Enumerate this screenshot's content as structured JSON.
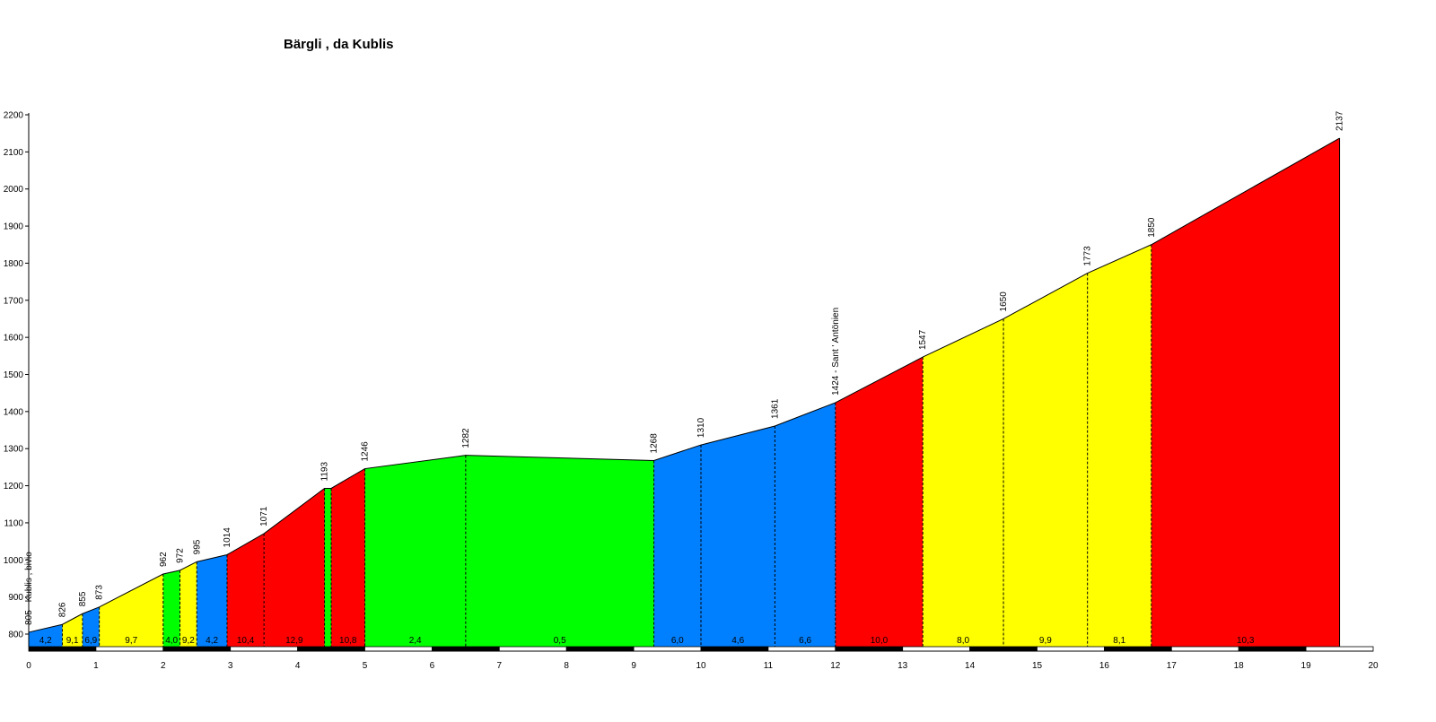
{
  "chart_data": {
    "type": "area",
    "title": "Bärgli , da Kublis",
    "xlabel": "",
    "ylabel": "",
    "xlim": [
      0,
      20
    ],
    "ylim": [
      760,
      2200
    ],
    "x_ticks": [
      0,
      1,
      2,
      3,
      4,
      5,
      6,
      7,
      8,
      9,
      10,
      11,
      12,
      13,
      14,
      15,
      16,
      17,
      18,
      19,
      20
    ],
    "y_ticks": [
      800,
      900,
      1000,
      1100,
      1200,
      1300,
      1400,
      1500,
      1600,
      1700,
      1800,
      1900,
      2000,
      2100,
      2200
    ],
    "points": [
      {
        "x": 0.0,
        "y": 805,
        "label": "805 - Kublis , bivio"
      },
      {
        "x": 0.5,
        "y": 826,
        "label": "826"
      },
      {
        "x": 0.8,
        "y": 855,
        "label": "855"
      },
      {
        "x": 1.05,
        "y": 873,
        "label": "873"
      },
      {
        "x": 2.0,
        "y": 962,
        "label": "962"
      },
      {
        "x": 2.25,
        "y": 972,
        "label": "972"
      },
      {
        "x": 2.5,
        "y": 995,
        "label": "995"
      },
      {
        "x": 2.95,
        "y": 1014,
        "label": "1014"
      },
      {
        "x": 3.5,
        "y": 1071,
        "label": "1071"
      },
      {
        "x": 4.4,
        "y": 1193,
        "label": "1193"
      },
      {
        "x": 4.5,
        "y": 1193,
        "label": ""
      },
      {
        "x": 5.0,
        "y": 1246,
        "label": "1246"
      },
      {
        "x": 6.5,
        "y": 1282,
        "label": "1282"
      },
      {
        "x": 9.3,
        "y": 1268,
        "label": "1268"
      },
      {
        "x": 10.0,
        "y": 1310,
        "label": "1310"
      },
      {
        "x": 11.1,
        "y": 1361,
        "label": "1361"
      },
      {
        "x": 12.0,
        "y": 1424,
        "label": "1424 - Sant ' Antönien"
      },
      {
        "x": 13.3,
        "y": 1547,
        "label": "1547"
      },
      {
        "x": 14.5,
        "y": 1650,
        "label": "1650"
      },
      {
        "x": 15.75,
        "y": 1773,
        "label": "1773"
      },
      {
        "x": 16.7,
        "y": 1850,
        "label": "1850"
      },
      {
        "x": 19.5,
        "y": 2137,
        "label": "2137"
      }
    ],
    "segments": [
      {
        "from": 0.0,
        "to": 0.5,
        "gradient": "4,2",
        "color": "#0080ff"
      },
      {
        "from": 0.5,
        "to": 0.8,
        "gradient": "9,1",
        "color": "#ffff00"
      },
      {
        "from": 0.8,
        "to": 1.05,
        "gradient": "6,9",
        "color": "#0080ff"
      },
      {
        "from": 1.05,
        "to": 2.0,
        "gradient": "9,7",
        "color": "#ffff00"
      },
      {
        "from": 2.0,
        "to": 2.25,
        "gradient": "4,0",
        "color": "#00ff00"
      },
      {
        "from": 2.25,
        "to": 2.5,
        "gradient": "9,2",
        "color": "#ffff00"
      },
      {
        "from": 2.5,
        "to": 2.95,
        "gradient": "4,2",
        "color": "#0080ff"
      },
      {
        "from": 2.95,
        "to": 3.5,
        "gradient": "10,4",
        "color": "#ff0000"
      },
      {
        "from": 3.5,
        "to": 4.4,
        "gradient": "12,9",
        "color": "#ff0000"
      },
      {
        "from": 4.4,
        "to": 4.5,
        "gradient": "",
        "color": "#00ff00"
      },
      {
        "from": 4.5,
        "to": 5.0,
        "gradient": "10,8",
        "color": "#ff0000"
      },
      {
        "from": 5.0,
        "to": 6.5,
        "gradient": "2,4",
        "color": "#00ff00"
      },
      {
        "from": 6.5,
        "to": 9.3,
        "gradient": "0,5",
        "color": "#00ff00"
      },
      {
        "from": 9.3,
        "to": 10.0,
        "gradient": "6,0",
        "color": "#0080ff"
      },
      {
        "from": 10.0,
        "to": 11.1,
        "gradient": "4,6",
        "color": "#0080ff"
      },
      {
        "from": 11.1,
        "to": 12.0,
        "gradient": "6,6",
        "color": "#0080ff"
      },
      {
        "from": 12.0,
        "to": 13.3,
        "gradient": "10,0",
        "color": "#ff0000"
      },
      {
        "from": 13.3,
        "to": 14.5,
        "gradient": "8,0",
        "color": "#ffff00"
      },
      {
        "from": 14.5,
        "to": 15.75,
        "gradient": "9,9",
        "color": "#ffff00"
      },
      {
        "from": 15.75,
        "to": 16.7,
        "gradient": "8,1",
        "color": "#ffff00"
      },
      {
        "from": 16.7,
        "to": 19.5,
        "gradient": "10,3",
        "color": "#ff0000"
      }
    ],
    "grid": false
  }
}
